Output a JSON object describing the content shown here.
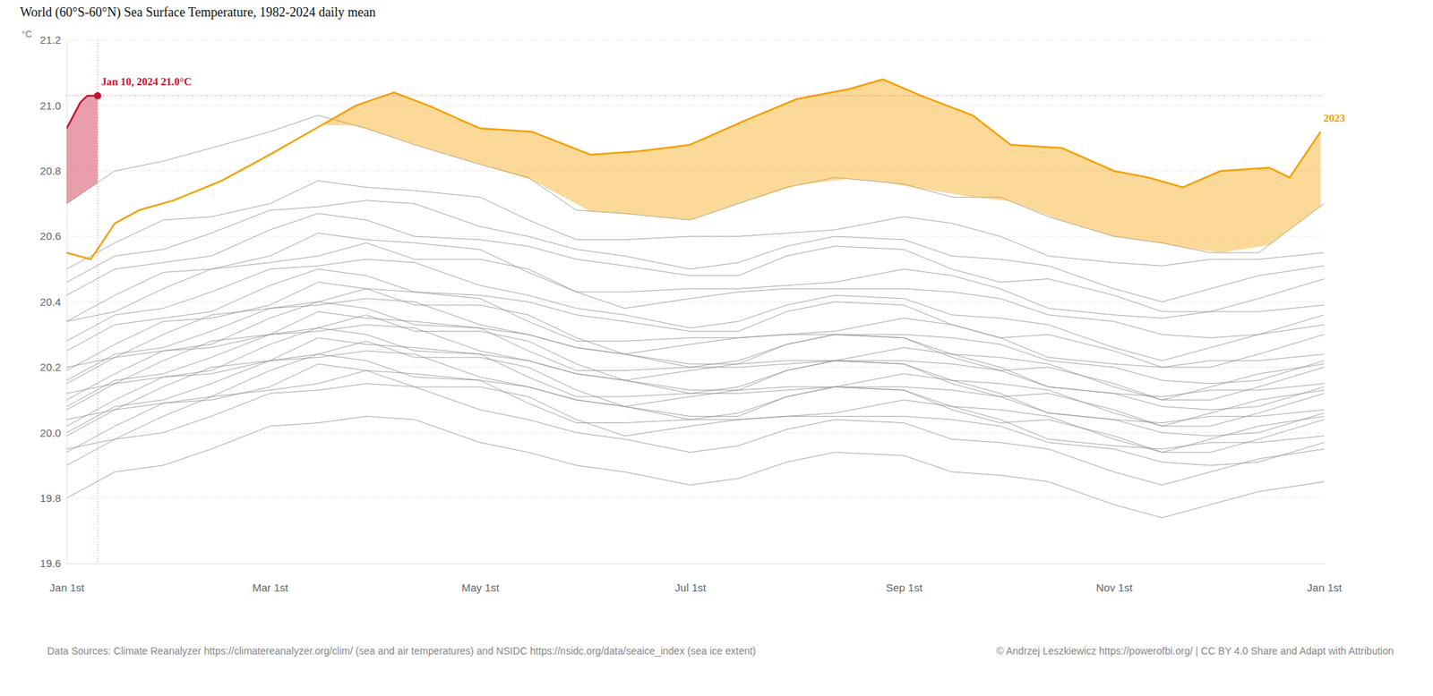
{
  "chart_data": {
    "type": "line",
    "title": "World (60°S-60°N) Sea Surface Temperature, 1982-2024 daily mean",
    "ylabel": "°C",
    "source": "Data Sources: Climate Reanalyzer https://climatereanalyzer.org/clim/ (sea and air temperatures) and NSIDC https://nsidc.org/data/seaice_index (sea ice extent)",
    "credit": "© Andrzej Leszkiewicz https://powerofbi.org/ | CC BY 4.0 Share and Adapt with Attribution",
    "grid": true,
    "color": "#8c8c8c",
    "xlim": [
      0,
      365
    ],
    "xticks": [
      {
        "value": 0,
        "label": "Jan 1st"
      },
      {
        "value": 59,
        "label": "Mar 1st"
      },
      {
        "value": 120,
        "label": "May 1st"
      },
      {
        "value": 181,
        "label": "Jul 1st"
      },
      {
        "value": 243,
        "label": "Sep 1st"
      },
      {
        "value": 304,
        "label": "Nov 1st"
      },
      {
        "value": 365,
        "label": "Jan 1st"
      }
    ],
    "ylim": [
      19.6,
      21.2
    ],
    "yticks": [
      19.6,
      19.8,
      {
        "value": 20.0,
        "label": "20.0"
      },
      20.2,
      20.4,
      20.6,
      20.8,
      {
        "value": 21.0,
        "label": "21.0"
      },
      21.2
    ],
    "x": [
      0,
      14,
      28,
      42,
      59,
      73,
      87,
      101,
      120,
      134,
      148,
      162,
      181,
      195,
      209,
      223,
      243,
      257,
      271,
      285,
      304,
      318,
      332,
      346,
      365
    ],
    "series": [
      {
        "values": [
          19.8,
          19.88,
          19.9,
          19.95,
          20.02,
          20.03,
          20.05,
          20.04,
          19.97,
          19.94,
          19.9,
          19.88,
          19.84,
          19.86,
          19.91,
          19.94,
          19.93,
          19.88,
          19.87,
          19.85,
          19.78,
          19.74,
          19.78,
          19.82,
          19.85
        ]
      },
      {
        "values": [
          19.9,
          19.98,
          20.0,
          20.05,
          20.12,
          20.13,
          20.15,
          20.14,
          20.07,
          20.04,
          20.0,
          19.98,
          19.94,
          19.96,
          20.01,
          20.04,
          20.03,
          19.98,
          19.97,
          19.95,
          19.88,
          19.84,
          19.88,
          19.92,
          19.95
        ]
      },
      {
        "values": [
          19.95,
          19.98,
          20.05,
          20.11,
          20.13,
          20.15,
          20.19,
          20.14,
          20.14,
          20.11,
          20.04,
          19.99,
          20.02,
          20.04,
          20.05,
          20.05,
          20.05,
          20.04,
          20.02,
          19.97,
          19.95,
          19.91,
          19.9,
          19.91,
          19.97
        ]
      },
      {
        "values": [
          19.94,
          20.02,
          20.09,
          20.1,
          20.14,
          20.21,
          20.19,
          20.18,
          20.16,
          20.09,
          20.03,
          20.03,
          20.04,
          20.04,
          20.05,
          20.06,
          20.1,
          20.08,
          20.04,
          19.98,
          19.96,
          19.95,
          19.97,
          19.97,
          19.99
        ]
      },
      {
        "values": [
          19.99,
          20.07,
          20.09,
          20.11,
          20.19,
          20.24,
          20.22,
          20.17,
          20.16,
          20.14,
          20.1,
          20.08,
          20.05,
          20.05,
          20.11,
          20.14,
          20.13,
          20.07,
          20.03,
          20.04,
          19.99,
          19.94,
          19.94,
          19.98,
          20.04
        ]
      },
      {
        "values": [
          20.0,
          20.08,
          20.1,
          20.15,
          20.22,
          20.23,
          20.25,
          20.24,
          20.17,
          20.14,
          20.1,
          20.08,
          20.04,
          20.06,
          20.11,
          20.14,
          20.13,
          20.08,
          20.07,
          20.05,
          19.98,
          19.94,
          19.98,
          20.02,
          20.05
        ]
      },
      {
        "values": [
          20.04,
          20.07,
          20.14,
          20.2,
          20.22,
          20.24,
          20.28,
          20.23,
          20.23,
          20.2,
          20.13,
          20.08,
          20.11,
          20.13,
          20.14,
          20.14,
          20.14,
          20.13,
          20.11,
          20.06,
          20.04,
          20.0,
          19.99,
          20.0,
          20.06
        ]
      },
      {
        "values": [
          20.02,
          20.1,
          20.17,
          20.18,
          20.22,
          20.29,
          20.27,
          20.26,
          20.24,
          20.17,
          20.11,
          20.11,
          20.12,
          20.12,
          20.13,
          20.14,
          20.18,
          20.16,
          20.12,
          20.06,
          20.04,
          20.03,
          20.05,
          20.05,
          20.07
        ]
      },
      {
        "values": [
          20.07,
          20.15,
          20.17,
          20.19,
          20.27,
          20.32,
          20.3,
          20.25,
          20.24,
          20.22,
          20.18,
          20.16,
          20.13,
          20.13,
          20.19,
          20.22,
          20.21,
          20.15,
          20.11,
          20.12,
          20.07,
          20.02,
          20.02,
          20.06,
          20.12
        ]
      },
      {
        "values": [
          20.08,
          20.16,
          20.18,
          20.23,
          20.3,
          20.31,
          20.33,
          20.32,
          20.25,
          20.22,
          20.18,
          20.16,
          20.12,
          20.14,
          20.19,
          20.22,
          20.21,
          20.16,
          20.15,
          20.13,
          20.06,
          20.02,
          20.06,
          20.1,
          20.13
        ]
      },
      {
        "values": [
          20.12,
          20.15,
          20.22,
          20.28,
          20.3,
          20.32,
          20.36,
          20.31,
          20.31,
          20.28,
          20.21,
          20.16,
          20.19,
          20.21,
          20.22,
          20.22,
          20.22,
          20.21,
          20.19,
          20.14,
          20.12,
          20.08,
          20.07,
          20.08,
          20.14
        ]
      },
      {
        "values": [
          20.1,
          20.18,
          20.25,
          20.26,
          20.3,
          20.37,
          20.35,
          20.34,
          20.32,
          20.25,
          20.19,
          20.19,
          20.2,
          20.2,
          20.21,
          20.22,
          20.26,
          20.24,
          20.2,
          20.14,
          20.12,
          20.11,
          20.13,
          20.13,
          20.15
        ]
      },
      {
        "values": [
          20.15,
          20.23,
          20.25,
          20.27,
          20.35,
          20.4,
          20.38,
          20.33,
          20.32,
          20.3,
          20.26,
          20.24,
          20.21,
          20.21,
          20.27,
          20.3,
          20.29,
          20.23,
          20.19,
          20.2,
          20.15,
          20.1,
          20.1,
          20.14,
          20.2
        ]
      },
      {
        "values": [
          20.16,
          20.24,
          20.26,
          20.31,
          20.38,
          20.39,
          20.41,
          20.4,
          20.33,
          20.3,
          20.26,
          20.24,
          20.2,
          20.22,
          20.27,
          20.3,
          20.29,
          20.24,
          20.23,
          20.21,
          20.14,
          20.1,
          20.14,
          20.18,
          20.21
        ]
      },
      {
        "values": [
          20.2,
          20.23,
          20.3,
          20.36,
          20.38,
          20.4,
          20.44,
          20.39,
          20.39,
          20.36,
          20.29,
          20.24,
          20.27,
          20.29,
          20.3,
          20.3,
          20.3,
          20.29,
          20.27,
          20.22,
          20.2,
          20.16,
          20.15,
          20.16,
          20.22
        ]
      },
      {
        "values": [
          20.19,
          20.27,
          20.34,
          20.35,
          20.39,
          20.46,
          20.44,
          20.43,
          20.41,
          20.34,
          20.28,
          20.28,
          20.29,
          20.29,
          20.3,
          20.31,
          20.35,
          20.33,
          20.29,
          20.23,
          20.21,
          20.2,
          20.22,
          20.22,
          20.24
        ]
      },
      {
        "values": [
          20.25,
          20.33,
          20.35,
          20.37,
          20.45,
          20.5,
          20.48,
          20.43,
          20.42,
          20.4,
          20.36,
          20.34,
          20.31,
          20.31,
          20.37,
          20.4,
          20.39,
          20.33,
          20.29,
          20.3,
          20.25,
          20.2,
          20.2,
          20.24,
          20.3
        ]
      },
      {
        "values": [
          20.28,
          20.36,
          20.38,
          20.43,
          20.5,
          20.51,
          20.53,
          20.52,
          20.45,
          20.42,
          20.38,
          20.36,
          20.32,
          20.34,
          20.39,
          20.42,
          20.41,
          20.36,
          20.35,
          20.33,
          20.26,
          20.22,
          20.26,
          20.3,
          20.33
        ]
      },
      {
        "values": [
          20.34,
          20.37,
          20.44,
          20.5,
          20.52,
          20.54,
          20.58,
          20.53,
          20.53,
          20.5,
          20.43,
          20.38,
          20.41,
          20.43,
          20.44,
          20.44,
          20.44,
          20.43,
          20.41,
          20.36,
          20.34,
          20.3,
          20.29,
          20.3,
          20.36
        ]
      },
      {
        "values": [
          20.34,
          20.42,
          20.49,
          20.5,
          20.54,
          20.61,
          20.59,
          20.58,
          20.56,
          20.49,
          20.43,
          20.43,
          20.44,
          20.44,
          20.45,
          20.46,
          20.5,
          20.48,
          20.44,
          20.38,
          20.36,
          20.35,
          20.37,
          20.37,
          20.39
        ]
      },
      {
        "values": [
          20.42,
          20.5,
          20.52,
          20.54,
          20.62,
          20.67,
          20.65,
          20.6,
          20.59,
          20.57,
          20.53,
          20.51,
          20.48,
          20.48,
          20.54,
          20.57,
          20.56,
          20.5,
          20.46,
          20.47,
          20.42,
          20.37,
          20.37,
          20.41,
          20.47
        ]
      },
      {
        "values": [
          20.46,
          20.54,
          20.56,
          20.61,
          20.68,
          20.69,
          20.71,
          20.7,
          20.63,
          20.6,
          20.56,
          20.54,
          20.5,
          20.52,
          20.57,
          20.6,
          20.59,
          20.54,
          20.53,
          20.51,
          20.44,
          20.4,
          20.44,
          20.48,
          20.51
        ]
      },
      {
        "values": [
          20.5,
          20.58,
          20.65,
          20.66,
          20.7,
          20.77,
          20.75,
          20.74,
          20.72,
          20.65,
          20.59,
          20.59,
          20.6,
          20.6,
          20.61,
          20.62,
          20.66,
          20.64,
          20.6,
          20.54,
          20.52,
          20.51,
          20.53,
          20.53,
          20.55
        ]
      },
      {
        "values": [
          20.7,
          20.8,
          20.83,
          20.87,
          20.92,
          20.97,
          20.93,
          20.88,
          20.82,
          20.78,
          20.68,
          20.67,
          20.65,
          20.7,
          20.75,
          20.78,
          20.76,
          20.72,
          20.72,
          20.66,
          20.6,
          20.58,
          20.55,
          20.55,
          20.7
        ]
      },
      {
        "name": "2023",
        "type": "area",
        "color": "#f5a000",
        "x": [
          0,
          7,
          14,
          21,
          31,
          45,
          59,
          74,
          84,
          95,
          105,
          120,
          135,
          152,
          166,
          181,
          196,
          212,
          227,
          237,
          248,
          263,
          274,
          289,
          304,
          314,
          324,
          335,
          349,
          355,
          364
        ],
        "values": [
          20.55,
          20.53,
          20.64,
          20.68,
          20.71,
          20.77,
          20.85,
          20.94,
          21.0,
          21.04,
          21.0,
          20.93,
          20.92,
          20.85,
          20.86,
          20.88,
          20.95,
          21.02,
          21.05,
          21.08,
          21.03,
          20.97,
          20.88,
          20.87,
          20.8,
          20.78,
          20.75,
          20.8,
          20.81,
          20.78,
          20.92
        ]
      },
      {
        "type": "area",
        "color": "#c8102e",
        "x": [
          0,
          2,
          4,
          6,
          9
        ],
        "values": [
          20.93,
          20.97,
          21.01,
          21.03,
          21.03
        ]
      }
    ],
    "annotations": [
      {
        "text": "Jan 10, 2024 21.0°C",
        "x": 9,
        "y": 21.03
      }
    ]
  }
}
